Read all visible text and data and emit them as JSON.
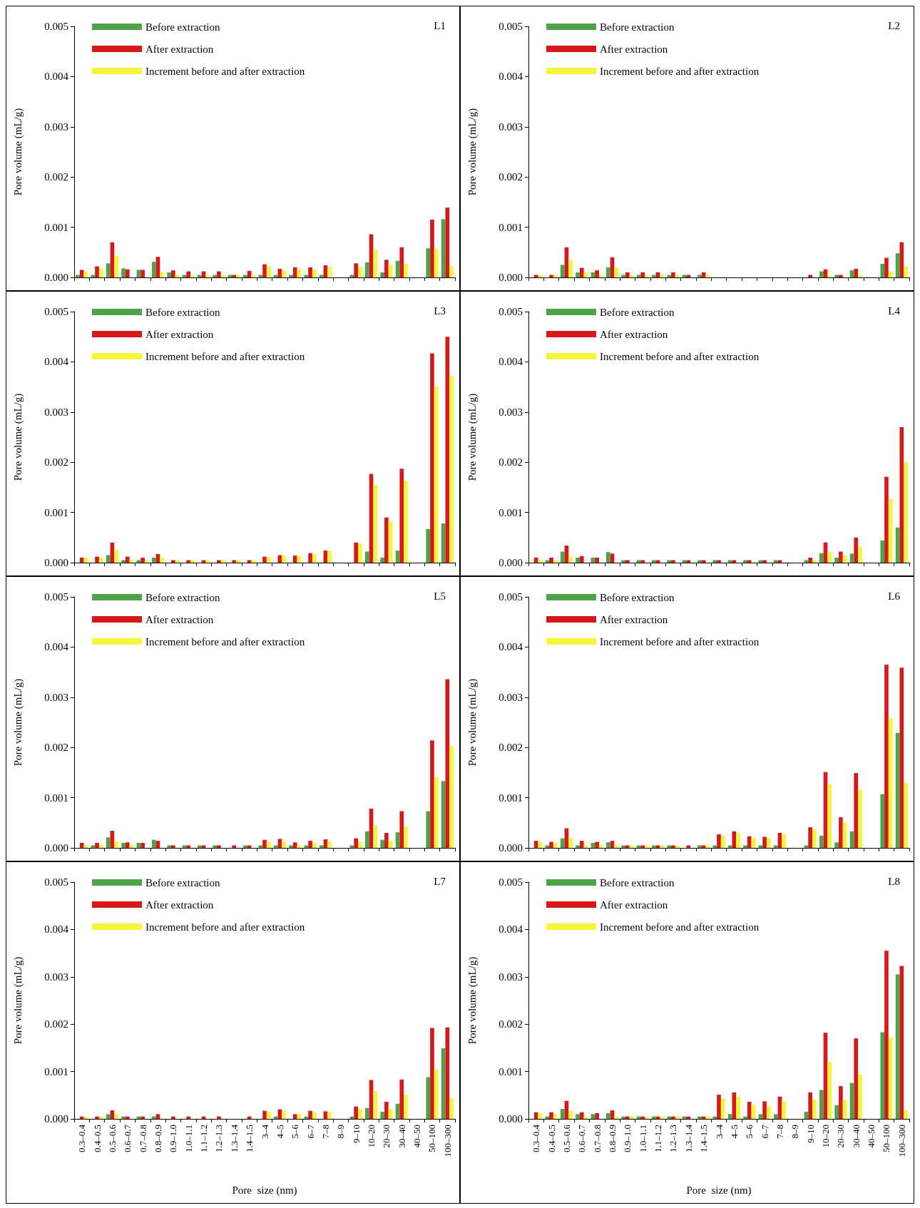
{
  "chart_data": [
    {
      "type": "bar",
      "title": "L1",
      "ylabel": "Pore volume (mL/g)",
      "categories": [
        null,
        null,
        null,
        null,
        null,
        null,
        null,
        null,
        null,
        null,
        null,
        null,
        null,
        null,
        null,
        null,
        null,
        null,
        null,
        null,
        null,
        null,
        null,
        null,
        null
      ],
      "ylim": [
        0,
        0.005
      ],
      "yticks": [
        {
          "value": 0,
          "label": "0.000"
        },
        {
          "value": 0.001,
          "label": "0.001"
        },
        {
          "value": 0.002,
          "label": "0.002"
        },
        {
          "value": 0.003,
          "label": "0.003"
        },
        {
          "value": 0.004,
          "label": "0.004"
        },
        {
          "value": 0.005,
          "label": "0.005"
        }
      ],
      "legend": "top left",
      "tick_labels": "y",
      "series": [
        {
          "name": "Before extraction",
          "color": "#4ea24a",
          "values": [
            5e-05,
            5e-05,
            0.00028,
            0.00018,
            0.00015,
            0.00031,
            0.0001,
            5e-05,
            5e-05,
            5e-05,
            5e-05,
            5e-05,
            5e-05,
            5e-05,
            5e-05,
            5e-05,
            5e-05,
            0,
            5e-05,
            0.0003,
            0.0001,
            0.00033,
            0,
            0.00058,
            0.00116
          ]
        },
        {
          "name": "After extraction",
          "color": "#d7191c",
          "values": [
            0.00015,
            0.00022,
            0.0007,
            0.00016,
            0.00015,
            0.00041,
            0.00014,
            0.00012,
            0.00012,
            0.00012,
            5e-05,
            0.00013,
            0.00026,
            0.00017,
            0.0002,
            0.0002,
            0.00024,
            0,
            0.00028,
            0.00086,
            0.00035,
            0.0006,
            0,
            0.00115,
            0.00139
          ]
        },
        {
          "name": "Increment before and after extraction",
          "color": "#f5f53c",
          "values": [
            0.00012,
            0.00017,
            0.00043,
            0,
            0,
            0.0001,
            5e-05,
            5e-05,
            5e-05,
            5e-05,
            5e-05,
            5e-05,
            0.00022,
            0.00013,
            0.00016,
            0.00016,
            0.00021,
            0,
            0.00021,
            0.00056,
            0.00025,
            0.00027,
            0,
            0.00057,
            0.00023
          ]
        }
      ]
    },
    {
      "type": "bar",
      "title": "L2",
      "ylabel": "Pore volume (mL/g)",
      "categories": [
        null,
        null,
        null,
        null,
        null,
        null,
        null,
        null,
        null,
        null,
        null,
        null,
        null,
        null,
        null,
        null,
        null,
        null,
        null,
        null,
        null,
        null,
        null,
        null,
        null
      ],
      "ylim": [
        0,
        0.005
      ],
      "yticks": [
        {
          "value": 0,
          "label": "0.000"
        },
        {
          "value": 0.001,
          "label": "0.001"
        },
        {
          "value": 0.002,
          "label": "0.002"
        },
        {
          "value": 0.003,
          "label": "0.003"
        },
        {
          "value": 0.004,
          "label": "0.004"
        },
        {
          "value": 0.005,
          "label": "0.005"
        }
      ],
      "legend": "top left",
      "tick_labels": "y",
      "series": [
        {
          "name": "Before extraction",
          "color": "#4ea24a",
          "values": [
            0,
            0,
            0.00025,
            0.0001,
            0.0001,
            0.0002,
            5e-05,
            5e-05,
            5e-05,
            5e-05,
            5e-05,
            5e-05,
            0,
            0,
            0,
            0,
            0,
            0,
            0,
            0.00012,
            5e-05,
            0.00014,
            0,
            0.00027,
            0.00048
          ]
        },
        {
          "name": "After extraction",
          "color": "#d7191c",
          "values": [
            5e-05,
            5e-05,
            0.0006,
            0.00019,
            0.00014,
            0.0004,
            0.0001,
            0.0001,
            0.0001,
            0.0001,
            5e-05,
            0.0001,
            0,
            0,
            0,
            0,
            0,
            0,
            5e-05,
            0.00016,
            5e-05,
            0.00017,
            0,
            0.00039,
            0.0007
          ]
        },
        {
          "name": "Increment before and after extraction",
          "color": "#f5f53c",
          "values": [
            5e-05,
            5e-05,
            0.00035,
            0.0001,
            5e-05,
            0.0002,
            5e-05,
            5e-05,
            5e-05,
            5e-05,
            0,
            5e-05,
            0,
            0,
            0,
            0,
            0,
            0,
            0,
            5e-05,
            0,
            5e-05,
            0,
            0.00012,
            0.00022
          ]
        }
      ]
    },
    {
      "type": "bar",
      "title": "L3",
      "ylabel": "Pore volume (mL/g)",
      "categories": [
        null,
        null,
        null,
        null,
        null,
        null,
        null,
        null,
        null,
        null,
        null,
        null,
        null,
        null,
        null,
        null,
        null,
        null,
        null,
        null,
        null,
        null,
        null,
        null,
        null
      ],
      "ylim": [
        0,
        0.005
      ],
      "yticks": [
        {
          "value": 0,
          "label": "0.000"
        },
        {
          "value": 0.001,
          "label": "0.001"
        },
        {
          "value": 0.002,
          "label": "0.002"
        },
        {
          "value": 0.003,
          "label": "0.003"
        },
        {
          "value": 0.004,
          "label": "0.004"
        },
        {
          "value": 0.005,
          "label": "0.005"
        }
      ],
      "legend": "top left",
      "tick_labels": "y",
      "series": [
        {
          "name": "Before extraction",
          "color": "#4ea24a",
          "values": [
            0,
            0,
            0.00015,
            5e-05,
            5e-05,
            0.0001,
            0,
            0,
            0,
            0,
            0,
            0,
            0,
            0,
            0,
            0,
            0,
            0,
            0,
            0.00022,
            0.0001,
            0.00024,
            0,
            0.00067,
            0.00078
          ]
        },
        {
          "name": "After extraction",
          "color": "#d7191c",
          "values": [
            0.0001,
            0.00012,
            0.0004,
            0.00012,
            0.0001,
            0.00017,
            5e-05,
            5e-05,
            5e-05,
            5e-05,
            5e-05,
            5e-05,
            0.00012,
            0.00015,
            0.00014,
            0.00019,
            0.00024,
            0,
            0.0004,
            0.00177,
            0.0009,
            0.00187,
            0,
            0.00417,
            0.0045
          ]
        },
        {
          "name": "Increment before and after extraction",
          "color": "#f5f53c",
          "values": [
            0.0001,
            0.0001,
            0.00025,
            5e-05,
            5e-05,
            0.0001,
            5e-05,
            5e-05,
            5e-05,
            5e-05,
            5e-05,
            5e-05,
            0.00011,
            0.00014,
            0.00013,
            0.00017,
            0.00023,
            0,
            0.00038,
            0.00155,
            0.00082,
            0.00163,
            0,
            0.0035,
            0.00372
          ]
        }
      ]
    },
    {
      "type": "bar",
      "title": "L4",
      "ylabel": "Pore volume (mL/g)",
      "categories": [
        null,
        null,
        null,
        null,
        null,
        null,
        null,
        null,
        null,
        null,
        null,
        null,
        null,
        null,
        null,
        null,
        null,
        null,
        null,
        null,
        null,
        null,
        null,
        null,
        null
      ],
      "ylim": [
        0,
        0.005
      ],
      "yticks": [
        {
          "value": 0,
          "label": "0.000"
        },
        {
          "value": 0.001,
          "label": "0.001"
        },
        {
          "value": 0.002,
          "label": "0.002"
        },
        {
          "value": 0.003,
          "label": "0.003"
        },
        {
          "value": 0.004,
          "label": "0.004"
        },
        {
          "value": 0.005,
          "label": "0.005"
        }
      ],
      "legend": "top left",
      "tick_labels": "y",
      "series": [
        {
          "name": "Before extraction",
          "color": "#4ea24a",
          "values": [
            0,
            5e-05,
            0.00022,
            0.0001,
            0.0001,
            0.00021,
            5e-05,
            5e-05,
            5e-05,
            5e-05,
            5e-05,
            5e-05,
            5e-05,
            5e-05,
            5e-05,
            5e-05,
            5e-05,
            0,
            5e-05,
            0.00019,
            0.0001,
            0.00018,
            0,
            0.00044,
            0.0007
          ]
        },
        {
          "name": "After extraction",
          "color": "#d7191c",
          "values": [
            0.0001,
            0.0001,
            0.00034,
            0.00013,
            0.0001,
            0.00018,
            5e-05,
            5e-05,
            5e-05,
            5e-05,
            5e-05,
            5e-05,
            5e-05,
            5e-05,
            5e-05,
            5e-05,
            5e-05,
            0,
            0.0001,
            0.0004,
            0.00022,
            0.0005,
            0,
            0.00171,
            0.0027
          ]
        },
        {
          "name": "Increment before and after extraction",
          "color": "#f5f53c",
          "values": [
            5e-05,
            5e-05,
            0.00012,
            0,
            0,
            0,
            0,
            0,
            0,
            0,
            0,
            0,
            0,
            0,
            0,
            0,
            0,
            0,
            5e-05,
            0.00021,
            0.00014,
            0.00032,
            0,
            0.00127,
            0.002
          ]
        }
      ]
    },
    {
      "type": "bar",
      "title": "L5",
      "ylabel": "Pore volume (mL/g)",
      "categories": [
        null,
        null,
        null,
        null,
        null,
        null,
        null,
        null,
        null,
        null,
        null,
        null,
        null,
        null,
        null,
        null,
        null,
        null,
        null,
        null,
        null,
        null,
        null,
        null,
        null
      ],
      "ylim": [
        0,
        0.005
      ],
      "yticks": [
        {
          "value": 0,
          "label": "0.000"
        },
        {
          "value": 0.001,
          "label": "0.001"
        },
        {
          "value": 0.002,
          "label": "0.002"
        },
        {
          "value": 0.003,
          "label": "0.003"
        },
        {
          "value": 0.004,
          "label": "0.004"
        },
        {
          "value": 0.005,
          "label": "0.005"
        }
      ],
      "legend": "top left",
      "tick_labels": "y",
      "series": [
        {
          "name": "Before extraction",
          "color": "#4ea24a",
          "values": [
            0,
            5e-05,
            0.00021,
            0.0001,
            0.0001,
            0.00016,
            5e-05,
            5e-05,
            5e-05,
            5e-05,
            0,
            5e-05,
            5e-05,
            5e-05,
            5e-05,
            5e-05,
            5e-05,
            0,
            5e-05,
            0.00033,
            0.00016,
            0.00031,
            0,
            0.00073,
            0.00133
          ]
        },
        {
          "name": "After extraction",
          "color": "#d7191c",
          "values": [
            0.0001,
            0.0001,
            0.00034,
            0.00011,
            0.0001,
            0.00014,
            5e-05,
            5e-05,
            5e-05,
            5e-05,
            5e-05,
            5e-05,
            0.00016,
            0.00018,
            0.00011,
            0.00014,
            0.00017,
            0,
            0.00019,
            0.00078,
            0.0003,
            0.00073,
            0,
            0.00214,
            0.00336
          ]
        },
        {
          "name": "Increment before and after extraction",
          "color": "#f5f53c",
          "values": [
            5e-05,
            5e-05,
            0.00013,
            5e-05,
            0,
            0,
            0,
            0,
            0,
            0,
            0,
            0,
            0.00012,
            0.00013,
            5e-05,
            0.0001,
            0.00013,
            0,
            0.00012,
            0.00045,
            0.00014,
            0.00042,
            0,
            0.00141,
            0.00203
          ]
        }
      ]
    },
    {
      "type": "bar",
      "title": "L6",
      "ylabel": "Pore volume (mL/g)",
      "categories": [
        null,
        null,
        null,
        null,
        null,
        null,
        null,
        null,
        null,
        null,
        null,
        null,
        null,
        null,
        null,
        null,
        null,
        null,
        null,
        null,
        null,
        null,
        null,
        null,
        null
      ],
      "ylim": [
        0,
        0.005
      ],
      "yticks": [
        {
          "value": 0,
          "label": "0.000"
        },
        {
          "value": 0.001,
          "label": "0.001"
        },
        {
          "value": 0.002,
          "label": "0.002"
        },
        {
          "value": 0.003,
          "label": "0.003"
        },
        {
          "value": 0.004,
          "label": "0.004"
        },
        {
          "value": 0.005,
          "label": "0.005"
        }
      ],
      "legend": "top left",
      "tick_labels": "y",
      "series": [
        {
          "name": "Before extraction",
          "color": "#4ea24a",
          "values": [
            0,
            5e-05,
            0.00019,
            5e-05,
            0.0001,
            0.00011,
            5e-05,
            5e-05,
            5e-05,
            5e-05,
            0,
            5e-05,
            5e-05,
            5e-05,
            5e-05,
            5e-05,
            5e-05,
            0,
            5e-05,
            0.00024,
            0.00011,
            0.00033,
            0,
            0.00107,
            0.00229
          ]
        },
        {
          "name": "After extraction",
          "color": "#d7191c",
          "values": [
            0.00014,
            0.00012,
            0.00039,
            0.00014,
            0.00012,
            0.00014,
            5e-05,
            5e-05,
            5e-05,
            5e-05,
            5e-05,
            5e-05,
            0.00027,
            0.00033,
            0.00023,
            0.00022,
            0.0003,
            0,
            0.00041,
            0.00151,
            0.00061,
            0.00149,
            0,
            0.00365,
            0.00359
          ]
        },
        {
          "name": "Increment before and after extraction",
          "color": "#f5f53c",
          "values": [
            0.00012,
            0.0001,
            0.0002,
            5e-05,
            5e-05,
            5e-05,
            5e-05,
            5e-05,
            5e-05,
            5e-05,
            0,
            5e-05,
            0.00024,
            0.00029,
            0.0002,
            0.00019,
            0.00027,
            0,
            0.00037,
            0.00127,
            0.0005,
            0.00116,
            0,
            0.00258,
            0.0013
          ]
        }
      ]
    },
    {
      "type": "bar",
      "title": "L7",
      "xlabel": "Pore  size (nm)",
      "ylabel": "Pore volume (mL/g)",
      "categories": [
        "0.3–0.4",
        "0.4–0.5",
        "0.5–0.6",
        "0.6–0.7",
        "0.7–0.8",
        "0.8–0.9",
        "0.9–1.0",
        "1.0–1.1",
        "1.1–1.2",
        "1.2–1.3",
        "1.3–1.4",
        "1.4–1.5",
        "3–4",
        "4–5",
        "5–6",
        "6–7",
        "7–8",
        "8–9",
        "9–10",
        "10–20",
        "20–30",
        "30–40",
        "40–50",
        "50–100",
        "100–300"
      ],
      "ylim": [
        0,
        0.005
      ],
      "yticks": [
        {
          "value": 0,
          "label": "0.000"
        },
        {
          "value": 0.001,
          "label": "0.001"
        },
        {
          "value": 0.002,
          "label": "0.002"
        },
        {
          "value": 0.003,
          "label": "0.003"
        },
        {
          "value": 0.004,
          "label": "0.004"
        },
        {
          "value": 0.005,
          "label": "0.005"
        }
      ],
      "legend": "top left",
      "series": [
        {
          "name": "Before extraction",
          "color": "#4ea24a",
          "values": [
            0,
            0,
            0.0001,
            5e-05,
            5e-05,
            5e-05,
            0,
            0,
            0,
            0,
            0,
            0,
            0,
            5e-05,
            0,
            5e-05,
            0,
            0,
            5e-05,
            0.00023,
            0.00015,
            0.00032,
            0,
            0.00088,
            0.00149
          ]
        },
        {
          "name": "After extraction",
          "color": "#d7191c",
          "values": [
            5e-05,
            5e-05,
            0.00018,
            5e-05,
            5e-05,
            0.0001,
            5e-05,
            5e-05,
            5e-05,
            5e-05,
            0,
            5e-05,
            0.00017,
            0.0002,
            0.0001,
            0.00017,
            0.00016,
            0,
            0.00026,
            0.00082,
            0.00036,
            0.00083,
            0,
            0.00192,
            0.00193
          ]
        },
        {
          "name": "Increment before and after extraction",
          "color": "#f5f53c",
          "values": [
            5e-05,
            5e-05,
            0.0001,
            0,
            0,
            0,
            0,
            0,
            0,
            0,
            0,
            0,
            0.00015,
            0.00017,
            0.0001,
            0.00014,
            0.00014,
            0,
            0.00021,
            0.00059,
            0.00021,
            0.00051,
            0,
            0.00104,
            0.00044
          ]
        }
      ]
    },
    {
      "type": "bar",
      "title": "L8",
      "xlabel": "Pore  size (nm)",
      "ylabel": "Pore volume (mL/g)",
      "categories": [
        "0.3–0.4",
        "0.4–0.5",
        "0.5–0.6",
        "0.6–0.7",
        "0.7–0.8",
        "0.8–0.9",
        "0.9–1.0",
        "1.0–1.1",
        "1.1–1.2",
        "1.2–1.3",
        "1.3–1.4",
        "1.4–1.5",
        "3–4",
        "4–5",
        "5–6",
        "6–7",
        "7–8",
        "8–9",
        "9–10",
        "10–20",
        "20–30",
        "30–40",
        "40–50",
        "50–100",
        "100–300"
      ],
      "ylim": [
        0,
        0.005
      ],
      "yticks": [
        {
          "value": 0,
          "label": "0.000"
        },
        {
          "value": 0.001,
          "label": "0.001"
        },
        {
          "value": 0.002,
          "label": "0.002"
        },
        {
          "value": 0.003,
          "label": "0.003"
        },
        {
          "value": 0.004,
          "label": "0.004"
        },
        {
          "value": 0.005,
          "label": "0.005"
        }
      ],
      "legend": "top left",
      "series": [
        {
          "name": "Before extraction",
          "color": "#4ea24a",
          "values": [
            0,
            5e-05,
            0.00021,
            0.0001,
            0.0001,
            0.00012,
            5e-05,
            5e-05,
            5e-05,
            5e-05,
            5e-05,
            5e-05,
            5e-05,
            0.0001,
            5e-05,
            0.0001,
            0.0001,
            0,
            0.00015,
            0.00061,
            0.00029,
            0.00076,
            0,
            0.00183,
            0.00305
          ]
        },
        {
          "name": "After extraction",
          "color": "#d7191c",
          "values": [
            0.00014,
            0.00014,
            0.00038,
            0.00014,
            0.00012,
            0.00018,
            5e-05,
            5e-05,
            5e-05,
            5e-05,
            5e-05,
            5e-05,
            0.00051,
            0.00056,
            0.00036,
            0.00037,
            0.00047,
            0,
            0.00056,
            0.00182,
            0.00069,
            0.0017,
            0,
            0.00355,
            0.00323
          ]
        },
        {
          "name": "Increment before and after extraction",
          "color": "#f5f53c",
          "values": [
            0.00012,
            0.0001,
            0.00017,
            5e-05,
            0,
            5e-05,
            5e-05,
            5e-05,
            5e-05,
            5e-05,
            0,
            5e-05,
            0.00044,
            0.00047,
            0.0003,
            0.00027,
            0.00037,
            0,
            0.00041,
            0.00121,
            0.0004,
            0.00094,
            0,
            0.00172,
            0.00018
          ]
        }
      ]
    }
  ]
}
